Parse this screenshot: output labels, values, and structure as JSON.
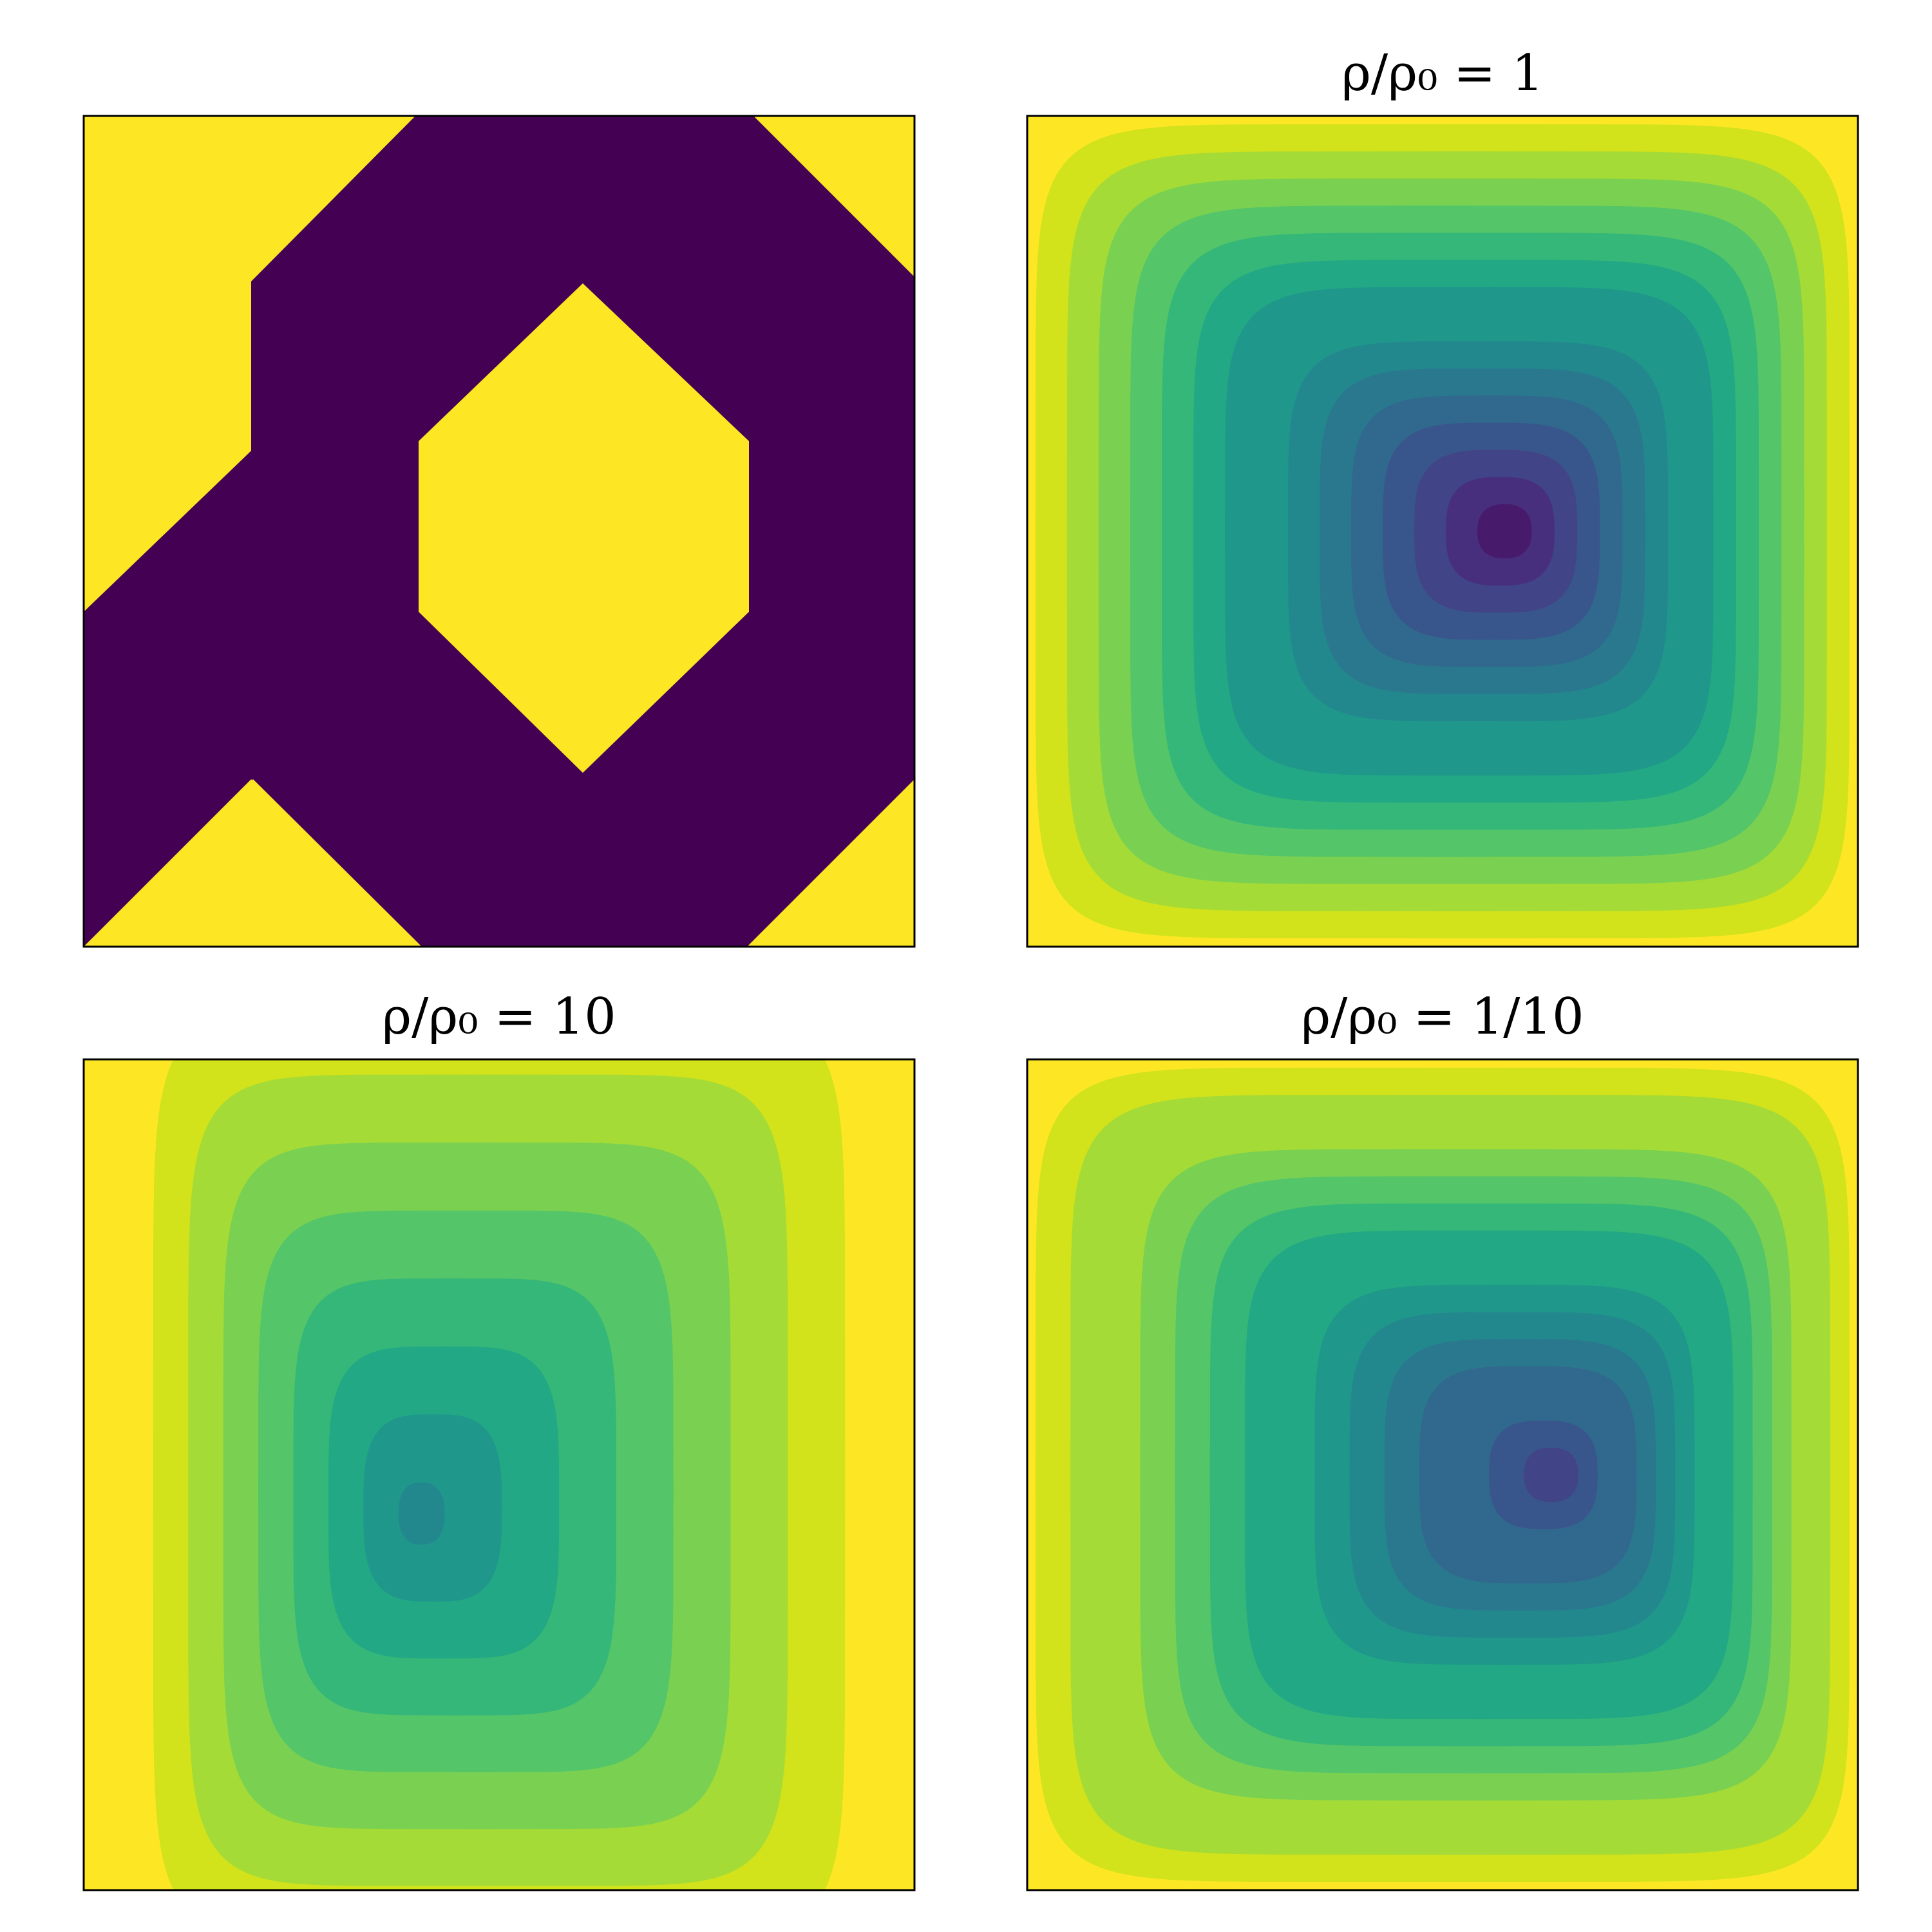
{
  "colors": {
    "viridis": [
      "#440154",
      "#481a6c",
      "#472f7d",
      "#414487",
      "#39568c",
      "#31688e",
      "#2a788e",
      "#23888e",
      "#1f988b",
      "#22a884",
      "#35b779",
      "#54c568",
      "#7ad151",
      "#a5db36",
      "#d2e21b",
      "#fde725"
    ],
    "material_solid": "#440154",
    "material_void": "#fde725",
    "frame": "#000000"
  },
  "chart_data": [
    {
      "type": "heatmap",
      "title": "",
      "description_kind": "binary material layout",
      "values_present": [
        0,
        1
      ],
      "grid": false
    },
    {
      "type": "heatmap",
      "title": "ρ/ρ₀ = 1",
      "center": [
        0.58,
        0.5
      ],
      "spread": [
        1.0,
        1.0
      ],
      "levels": 15,
      "grid": false
    },
    {
      "type": "heatmap",
      "title": "ρ/ρ₀ = 10",
      "center": [
        0.4,
        0.55
      ],
      "spread": [
        0.85,
        1.15
      ],
      "levels": 15,
      "grid": false
    },
    {
      "type": "heatmap",
      "title": "ρ/ρ₀ = 1/10",
      "center": [
        0.64,
        0.5
      ],
      "spread": [
        1.0,
        1.0
      ],
      "levels": 15,
      "grid": false
    }
  ]
}
